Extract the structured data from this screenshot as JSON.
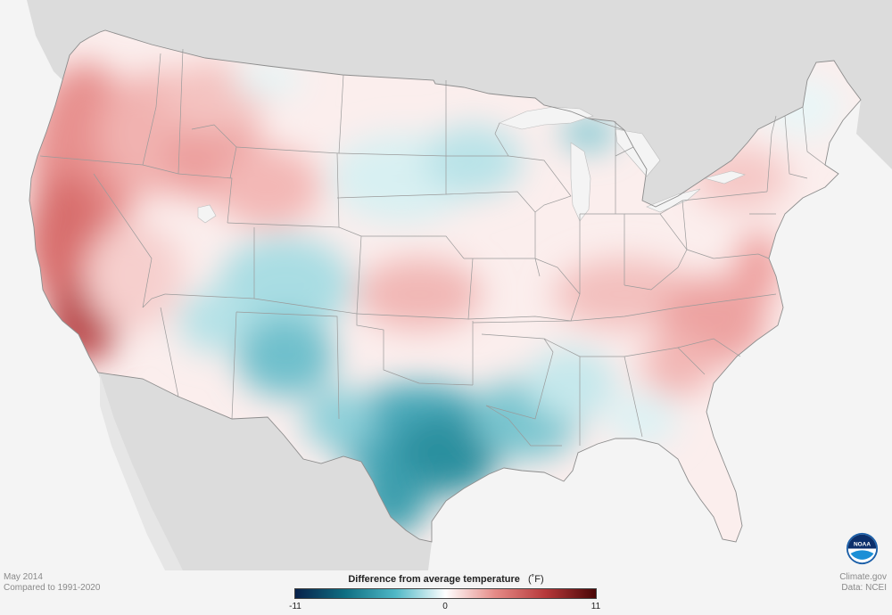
{
  "caption": {
    "period": "May 2014",
    "baseline": "Compared to 1991-2020"
  },
  "credits": {
    "site": "Climate.gov",
    "source": "Data: NCEI"
  },
  "legend": {
    "title": "Difference from average temperature",
    "unit": "(˚F)",
    "min_label": "-11",
    "mid_label": "0",
    "max_label": "11",
    "colors": [
      "#08214a",
      "#0f6f83",
      "#4fb8c6",
      "#ffffff",
      "#e58a86",
      "#b6383a",
      "#4a0606"
    ]
  },
  "logo": {
    "text": "NOAA",
    "icon": "noaa-logo-icon"
  },
  "colors": {
    "background": "#f4f4f4",
    "land_outside": "#dcdcdc",
    "state_border": "#9a9a9a",
    "water": "#f4f4f4"
  }
}
